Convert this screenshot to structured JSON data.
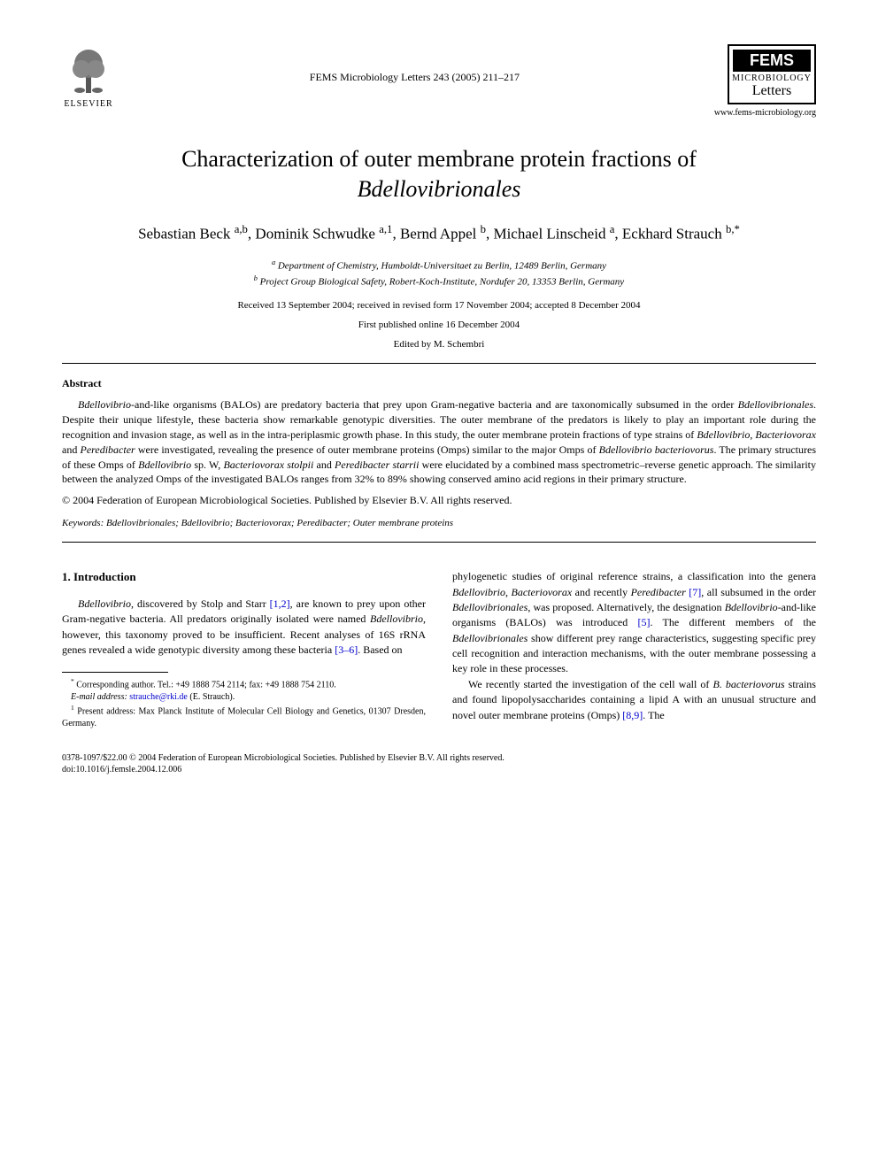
{
  "header": {
    "elsevier_label": "ELSEVIER",
    "journal_ref": "FEMS Microbiology Letters 243 (2005) 211–217",
    "fems_title": "FEMS",
    "fems_sub1": "MICROBIOLOGY",
    "fems_sub2": "Letters",
    "fems_url": "www.fems-microbiology.org"
  },
  "title_line1": "Characterization of outer membrane protein fractions of",
  "title_line2_italic": "Bdellovibrionales",
  "authors_html": "Sebastian Beck <sup>a,b</sup>, Dominik Schwudke <sup>a,1</sup>, Bernd Appel <sup>b</sup>, Michael Linscheid <sup>a</sup>, Eckhard Strauch <sup>b,*</sup>",
  "affiliations": {
    "a": "Department of Chemistry, Humboldt-Universitaet zu Berlin, 12489 Berlin, Germany",
    "b": "Project Group Biological Safety, Robert-Koch-Institute, Nordufer 20, 13353 Berlin, Germany"
  },
  "dates": "Received 13 September 2004; received in revised form 17 November 2004; accepted 8 December 2004",
  "first_published": "First published online 16 December 2004",
  "edited_by": "Edited by M. Schembri",
  "abstract": {
    "heading": "Abstract",
    "text_parts": [
      {
        "italic": true,
        "text": "Bdellovibrio"
      },
      {
        "italic": false,
        "text": "-and-like organisms (BALOs) are predatory bacteria that prey upon Gram-negative bacteria and are taxonomically subsumed in the order "
      },
      {
        "italic": true,
        "text": "Bdellovibrionales"
      },
      {
        "italic": false,
        "text": ". Despite their unique lifestyle, these bacteria show remarkable genotypic diversities. The outer membrane of the predators is likely to play an important role during the recognition and invasion stage, as well as in the intra-periplasmic growth phase. In this study, the outer membrane protein fractions of type strains of "
      },
      {
        "italic": true,
        "text": "Bdellovibrio"
      },
      {
        "italic": false,
        "text": ", "
      },
      {
        "italic": true,
        "text": "Bacteriovorax"
      },
      {
        "italic": false,
        "text": " and "
      },
      {
        "italic": true,
        "text": "Peredibacter"
      },
      {
        "italic": false,
        "text": " were investigated, revealing the presence of outer membrane proteins (Omps) similar to the major Omps of "
      },
      {
        "italic": true,
        "text": "Bdellovibrio bacteriovorus"
      },
      {
        "italic": false,
        "text": ". The primary structures of these Omps of "
      },
      {
        "italic": true,
        "text": "Bdellovibrio"
      },
      {
        "italic": false,
        "text": " sp. W, "
      },
      {
        "italic": true,
        "text": "Bacteriovorax stolpii"
      },
      {
        "italic": false,
        "text": " and "
      },
      {
        "italic": true,
        "text": "Peredibacter starrii"
      },
      {
        "italic": false,
        "text": " were elucidated by a combined mass spectrometric–reverse genetic approach. The similarity between the analyzed Omps of the investigated BALOs ranges from 32% to 89% showing conserved amino acid regions in their primary structure."
      }
    ],
    "copyright": "© 2004 Federation of European Microbiological Societies. Published by Elsevier B.V. All rights reserved."
  },
  "keywords": {
    "label": "Keywords:",
    "text": " Bdellovibrionales; Bdellovibrio; Bacteriovorax; Peredibacter; Outer membrane proteins"
  },
  "introduction": {
    "heading": "1. Introduction",
    "col1_parts": [
      {
        "italic": true,
        "text": "Bdellovibrio"
      },
      {
        "italic": false,
        "text": ", discovered by Stolp and Starr "
      },
      {
        "link": true,
        "text": "[1,2]"
      },
      {
        "italic": false,
        "text": ", are known to prey upon other Gram-negative bacteria. All predators originally isolated were named "
      },
      {
        "italic": true,
        "text": "Bdellovibrio"
      },
      {
        "italic": false,
        "text": ", however, this taxonomy proved to be insufficient. Recent analyses of 16S rRNA genes revealed a wide genotypic diversity among these bacteria "
      },
      {
        "link": true,
        "text": "[3–6]"
      },
      {
        "italic": false,
        "text": ". Based on"
      }
    ],
    "col2_p1_parts": [
      {
        "italic": false,
        "text": "phylogenetic studies of original reference strains, a classification into the genera "
      },
      {
        "italic": true,
        "text": "Bdellovibrio"
      },
      {
        "italic": false,
        "text": ", "
      },
      {
        "italic": true,
        "text": "Bacteriovorax"
      },
      {
        "italic": false,
        "text": " and recently "
      },
      {
        "italic": true,
        "text": "Peredibacter"
      },
      {
        "italic": false,
        "text": " "
      },
      {
        "link": true,
        "text": "[7]"
      },
      {
        "italic": false,
        "text": ", all subsumed in the order "
      },
      {
        "italic": true,
        "text": "Bdellovibrionales"
      },
      {
        "italic": false,
        "text": ", was proposed. Alternatively, the designation "
      },
      {
        "italic": true,
        "text": "Bdellovibrio"
      },
      {
        "italic": false,
        "text": "-and-like organisms (BALOs) was introduced "
      },
      {
        "link": true,
        "text": "[5]"
      },
      {
        "italic": false,
        "text": ". The different members of the "
      },
      {
        "italic": true,
        "text": "Bdellovibrionales"
      },
      {
        "italic": false,
        "text": " show different prey range characteristics, suggesting specific prey cell recognition and interaction mechanisms, with the outer membrane possessing a key role in these processes."
      }
    ],
    "col2_p2_parts": [
      {
        "italic": false,
        "text": "We recently started the investigation of the cell wall of "
      },
      {
        "italic": true,
        "text": "B. bacteriovorus"
      },
      {
        "italic": false,
        "text": " strains and found lipopolysaccharides containing a lipid A with an unusual structure and novel outer membrane proteins (Omps) "
      },
      {
        "link": true,
        "text": "[8,9]"
      },
      {
        "italic": false,
        "text": ". The"
      }
    ]
  },
  "footnotes": {
    "corresponding": "Corresponding author. Tel.: +49 1888 754 2114; fax: +49 1888 754 2110.",
    "email_label": "E-mail address:",
    "email": "strauche@rki.de",
    "email_person": "(E. Strauch).",
    "present_address": "Present address: Max Planck Institute of Molecular Cell Biology and Genetics, 01307 Dresden, Germany."
  },
  "bottom": {
    "line1": "0378-1097/$22.00 © 2004 Federation of European Microbiological Societies. Published by Elsevier B.V. All rights reserved.",
    "line2": "doi:10.1016/j.femsle.2004.12.006"
  },
  "colors": {
    "text": "#000000",
    "background": "#ffffff",
    "link": "#0000cc"
  }
}
